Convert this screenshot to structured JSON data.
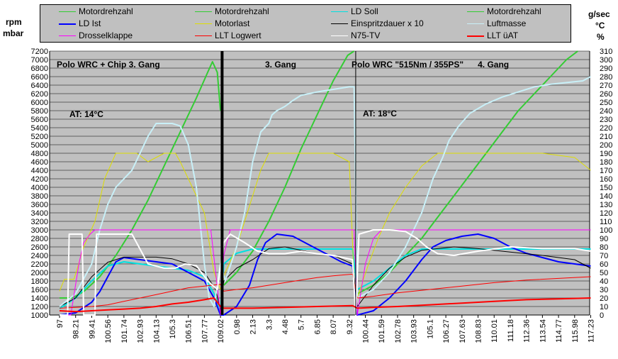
{
  "units": {
    "left": [
      "rpm",
      "mbar"
    ],
    "right": [
      "g/sec",
      "°C",
      "%"
    ]
  },
  "legend": [
    {
      "label": "Motordrehzahl",
      "color": "#33cc33"
    },
    {
      "label": "Motordrehzahl",
      "color": "#33cc33"
    },
    {
      "label": "LD Soll",
      "color": "#00e0e0"
    },
    {
      "label": "Motordrehzahl",
      "color": "#33cc33"
    },
    {
      "label": "LD Ist",
      "color": "#0000ff"
    },
    {
      "label": "Motorlast",
      "color": "#dddd00"
    },
    {
      "label": "Einspritzdauer x 10",
      "color": "#000000"
    },
    {
      "label": "Luftmasse",
      "color": "#c8f0f8"
    },
    {
      "label": "Drosselklappe",
      "color": "#ff00ff"
    },
    {
      "label": "LLT Logwert",
      "color": "#ff0000"
    },
    {
      "label": "N75-TV",
      "color": "#ffffff"
    },
    {
      "label": "LLT üAT",
      "color": "#ff0000"
    }
  ],
  "annotations": [
    {
      "text": "Polo WRC + Chip   3. Gang"
    },
    {
      "text": "3. Gang"
    },
    {
      "text": "Polo WRC \"515Nm / 355PS\"      4. Gang"
    },
    {
      "text": "AT: 14°C"
    },
    {
      "text": "AT: 18°C"
    }
  ],
  "chart_data": {
    "type": "line",
    "yleft": {
      "ylim": [
        1000,
        7200
      ],
      "ticks": [
        1000,
        1200,
        1400,
        1600,
        1800,
        2000,
        2200,
        2400,
        2600,
        2800,
        3000,
        3200,
        3400,
        3600,
        3800,
        4000,
        4200,
        4400,
        4600,
        4800,
        5000,
        5200,
        5400,
        5600,
        5800,
        6000,
        6200,
        6400,
        6600,
        6800,
        7000,
        7200
      ]
    },
    "yright": {
      "ylim": [
        0,
        310
      ],
      "ticks": [
        0,
        10,
        20,
        30,
        40,
        50,
        60,
        70,
        80,
        90,
        100,
        110,
        120,
        130,
        140,
        150,
        160,
        170,
        180,
        190,
        200,
        210,
        220,
        230,
        240,
        250,
        260,
        270,
        280,
        290,
        300,
        310
      ]
    },
    "xticks": [
      "97",
      "98.21",
      "99.41",
      "100.56",
      "101.74",
      "102.93",
      "104.13",
      "105.3",
      "106.51",
      "107.77",
      "109.02",
      "0.98",
      "2.13",
      "3.3",
      "4.48",
      "5.7",
      "6.85",
      "8.07",
      "9.32",
      "100.44",
      "101.59",
      "102.78",
      "103.93",
      "105.1",
      "106.27",
      "107.63",
      "108.83",
      "110.01",
      "111.18",
      "112.36",
      "113.54",
      "114.77",
      "115.98",
      "117.23"
    ],
    "grid": true,
    "background": "#c0c0c0",
    "legend_position": "top",
    "run_separators_at_x_index": [
      10.1,
      18.4
    ],
    "thick_separator_at_x_index": 10.1,
    "series": [
      {
        "name": "Motordrehzahl",
        "axis": "left",
        "color": "#33cc33",
        "x": [
          0,
          0.8,
          1.5,
          2.5,
          3.5,
          4.5,
          5.5,
          6.5,
          7.5,
          8.5,
          9.2,
          9.5,
          9.8,
          10.0
        ],
        "y": [
          1400,
          1400,
          1550,
          1900,
          2400,
          3000,
          3700,
          4500,
          5300,
          6100,
          6700,
          6950,
          6700,
          5800
        ]
      },
      {
        "name": "Motordrehzahl",
        "axis": "left",
        "color": "#33cc33",
        "x": [
          10.2,
          11,
          12,
          13,
          14,
          15,
          16,
          17,
          17.9,
          18.3
        ],
        "y": [
          1700,
          2000,
          2500,
          3200,
          4000,
          4900,
          5700,
          6500,
          7100,
          7200
        ]
      },
      {
        "name": "Motordrehzahl",
        "axis": "left",
        "color": "#33cc33",
        "x": [
          18.5,
          19.5,
          20.5,
          21.5,
          22.5,
          23.5,
          24.5,
          25.5,
          26.5,
          27.5,
          28.5,
          29.5,
          30.5,
          31.5,
          32.2
        ],
        "y": [
          1500,
          1700,
          2000,
          2400,
          2800,
          3300,
          3800,
          4300,
          4800,
          5300,
          5800,
          6200,
          6600,
          7000,
          7200
        ]
      },
      {
        "name": "LD Soll",
        "axis": "left",
        "color": "#00e0e0",
        "x": [
          0,
          1,
          2,
          3,
          4,
          5,
          6,
          7,
          8,
          9,
          9.6,
          10.0,
          10.2,
          11,
          12,
          13,
          14,
          15,
          16,
          17,
          18.2,
          18.5,
          19.5,
          20.5,
          21.5,
          22.5,
          23.5,
          24.5,
          26,
          28,
          30,
          32,
          33
        ],
        "y": [
          1150,
          1400,
          1800,
          2150,
          2250,
          2200,
          2150,
          2100,
          2050,
          1900,
          1500,
          1100,
          2200,
          2450,
          2550,
          2550,
          2550,
          2550,
          2550,
          2550,
          2550,
          1600,
          1800,
          2100,
          2400,
          2550,
          2550,
          2550,
          2550,
          2550,
          2550,
          2550,
          2550
        ]
      },
      {
        "name": "LD Ist",
        "axis": "left",
        "color": "#0000ff",
        "x": [
          0,
          1,
          2,
          2.5,
          3,
          3.5,
          4,
          5,
          6,
          7,
          8,
          9,
          9.6,
          10.0,
          10.2,
          11,
          11.8,
          12.3,
          12.8,
          13.5,
          14.5,
          15.5,
          16.5,
          17.5,
          18.2,
          18.5,
          19.5,
          20.5,
          21.5,
          22.5,
          23.2,
          24,
          25,
          26,
          27,
          28,
          29,
          30,
          31,
          32,
          33
        ],
        "y": [
          1000,
          1050,
          1300,
          1550,
          1900,
          2250,
          2350,
          2300,
          2250,
          2200,
          2000,
          1800,
          1400,
          1000,
          1000,
          1200,
          1700,
          2300,
          2700,
          2900,
          2850,
          2650,
          2450,
          2250,
          2150,
          1000,
          1100,
          1400,
          1800,
          2300,
          2600,
          2750,
          2850,
          2900,
          2800,
          2600,
          2450,
          2350,
          2250,
          2200,
          2150
        ]
      },
      {
        "name": "Motorlast",
        "axis": "right",
        "color": "#dddd00",
        "x": [
          0,
          0.3,
          0.9,
          1.5,
          2.2,
          2.8,
          3.5,
          4.2,
          4.8,
          5.5,
          6.5,
          7.2,
          7.5,
          8.0,
          9.0,
          9.6,
          10.0,
          10.3,
          11,
          11.5,
          12,
          12.5,
          13,
          14,
          15,
          16,
          17,
          18,
          18.3,
          18.5,
          19.2,
          19.8,
          20.5,
          21.5,
          22.5,
          23.5,
          24.5,
          26,
          28,
          30,
          32,
          33
        ],
        "y": [
          28,
          42,
          42,
          80,
          110,
          160,
          190,
          190,
          190,
          180,
          190,
          190,
          180,
          160,
          120,
          50,
          30,
          50,
          80,
          110,
          140,
          170,
          190,
          190,
          190,
          190,
          190,
          180,
          40,
          20,
          60,
          90,
          120,
          150,
          175,
          190,
          190,
          190,
          190,
          190,
          185,
          170
        ]
      },
      {
        "name": "Einspritzdauer x 10",
        "axis": "right",
        "color": "#000000",
        "x": [
          0,
          1,
          2,
          3,
          4,
          5,
          6,
          7,
          8,
          9,
          9.7,
          10.0,
          10.2,
          11,
          12,
          13,
          14,
          15,
          16,
          17,
          18.2,
          18.5,
          19.5,
          20.5,
          21.5,
          22.5,
          23.5,
          24.5,
          26,
          28,
          30,
          32,
          33
        ],
        "y": [
          10,
          20,
          45,
          62,
          68,
          68,
          68,
          66,
          60,
          50,
          30,
          5,
          40,
          55,
          65,
          78,
          80,
          76,
          72,
          70,
          60,
          10,
          35,
          55,
          68,
          76,
          78,
          80,
          78,
          74,
          70,
          65,
          55
        ]
      },
      {
        "name": "Luftmasse",
        "axis": "right",
        "color": "#c8f0f8",
        "x": [
          0,
          1,
          2,
          2.5,
          3,
          3.5,
          4,
          4.5,
          5,
          5.5,
          6,
          7,
          7.5,
          8,
          8.5,
          9,
          9.3,
          9.6,
          10.0,
          10.3,
          11,
          11.5,
          12,
          12.5,
          13,
          13.2,
          13.5,
          14,
          14.5,
          15,
          16,
          17,
          18,
          18.3,
          18.5,
          19.5,
          20.5,
          21.5,
          22.5,
          23.2,
          23.8,
          24.2,
          24.8,
          25.5,
          26.5,
          27.5,
          28.5,
          29.5,
          30.5,
          31.5,
          32.5,
          33
        ],
        "y": [
          10,
          25,
          60,
          100,
          130,
          150,
          160,
          170,
          190,
          210,
          225,
          225,
          222,
          200,
          150,
          60,
          20,
          10,
          60,
          40,
          80,
          120,
          180,
          215,
          225,
          235,
          240,
          245,
          252,
          258,
          262,
          265,
          268,
          268,
          20,
          30,
          50,
          80,
          120,
          160,
          185,
          205,
          222,
          237,
          248,
          256,
          262,
          268,
          271,
          273,
          275,
          280
        ]
      },
      {
        "name": "Drosselklappe",
        "axis": "right",
        "color": "#ff00ff",
        "x": [
          0,
          0.7,
          1.2,
          1.5,
          1.9,
          2.2,
          8.5,
          9.0,
          9.4,
          10.0,
          10.2,
          10.6,
          18.3,
          18.5,
          19.0,
          19.5,
          20.0,
          33
        ],
        "y": [
          0,
          0,
          60,
          85,
          95,
          100,
          100,
          100,
          100,
          0,
          70,
          100,
          100,
          0,
          60,
          90,
          100,
          100
        ]
      },
      {
        "name": "LLT Logwert",
        "axis": "right",
        "color": "#ff0000",
        "x": [
          0,
          1,
          2,
          3,
          4,
          5,
          6,
          7,
          8,
          9,
          10.0,
          10.2,
          11,
          12,
          13,
          14,
          15,
          16,
          17,
          18.2,
          18.5,
          19.5,
          21,
          23,
          25,
          27,
          29,
          31,
          33
        ],
        "y": [
          8,
          9,
          10,
          12,
          16,
          20,
          24,
          28,
          32,
          34,
          36,
          28,
          30,
          32,
          35,
          38,
          41,
          44,
          46,
          48,
          20,
          22,
          26,
          30,
          34,
          38,
          41,
          43,
          45
        ]
      },
      {
        "name": "N75-TV",
        "axis": "right",
        "color": "#ffffff",
        "x": [
          0,
          0.5,
          0.6,
          1.4,
          1.5,
          2.2,
          2.3,
          3.5,
          4.5,
          5.5,
          6.5,
          7.2,
          7.8,
          8.5,
          9.2,
          9.8,
          10.2,
          10.6,
          11.5,
          12.3,
          13,
          14,
          15,
          16,
          17,
          18.2,
          18.4,
          18.6,
          19.5,
          20.5,
          21.5,
          22.2,
          22.8,
          23.5,
          24.5,
          26,
          28,
          30,
          32,
          33
        ],
        "y": [
          0,
          0,
          95,
          95,
          0,
          0,
          95,
          95,
          95,
          60,
          55,
          55,
          60,
          58,
          40,
          30,
          85,
          95,
          85,
          75,
          72,
          72,
          75,
          72,
          70,
          65,
          0,
          95,
          100,
          100,
          98,
          90,
          80,
          72,
          70,
          75,
          80,
          78,
          78,
          75
        ]
      },
      {
        "name": "LLT üAT",
        "axis": "right",
        "color": "#ff0000",
        "x": [
          0,
          1,
          2,
          3,
          4,
          5,
          6,
          7,
          8,
          9,
          9.6,
          10.0,
          10.2,
          11,
          12,
          14,
          16,
          18.2,
          18.5,
          19.5,
          21,
          23,
          25,
          27,
          29,
          31,
          33
        ],
        "y": [
          5,
          4,
          5,
          6,
          7,
          8,
          10,
          13,
          15,
          18,
          20,
          10,
          8,
          8,
          8,
          9,
          10,
          11,
          8,
          9,
          10,
          12,
          14,
          16,
          18,
          19,
          20
        ]
      }
    ]
  }
}
